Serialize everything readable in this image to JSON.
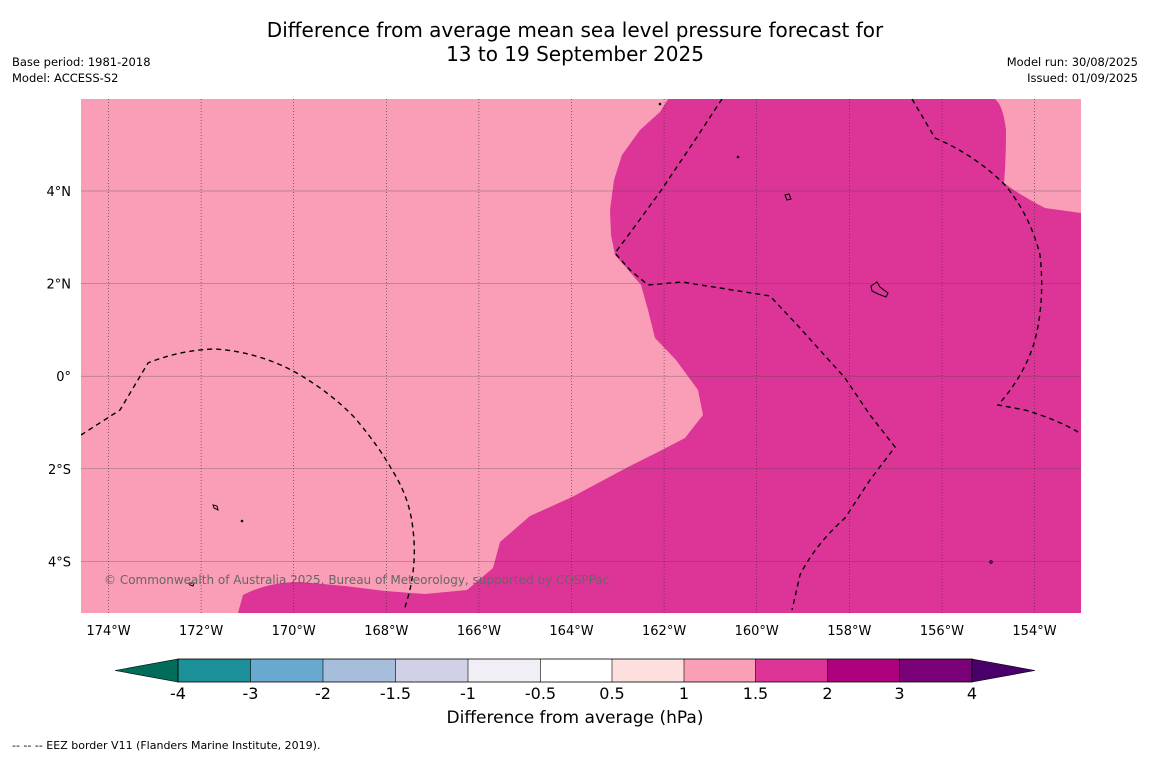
{
  "header": {
    "title_line1": "Difference from average mean sea level pressure forecast for",
    "title_line2": "13 to 19 September 2025",
    "base_period": "Base period: 1981-2018",
    "model": "Model: ACCESS-S2",
    "model_run": "Model run: 30/08/2025",
    "issued": "Issued: 01/09/2025"
  },
  "map": {
    "lon_labels": [
      "174°W",
      "172°W",
      "170°W",
      "168°W",
      "166°W",
      "164°W",
      "162°W",
      "160°W",
      "158°W",
      "156°W",
      "154°W"
    ],
    "lat_labels": [
      "4°N",
      "2°N",
      "0°",
      "2°S",
      "4°S"
    ],
    "copyright": "© Commonwealth of Australia 2025, Bureau of Meteorology, supported by COSPPac",
    "colors": {
      "anomaly_1_to_1_5": "#f99eb6",
      "anomaly_1_5_to_2": "#dd3497"
    }
  },
  "colorbar": {
    "labels": [
      "-4",
      "-3",
      "-2",
      "-1.5",
      "-1",
      "-0.5",
      "0.5",
      "1",
      "1.5",
      "2",
      "3",
      "4"
    ],
    "colors": [
      "#016c59",
      "#1c9099",
      "#67a9cf",
      "#a6bddb",
      "#d0d1e6",
      "#f1eef6",
      "#ffffff",
      "#fde0dd",
      "#fa9fb5",
      "#dd3497",
      "#ae017e",
      "#7a0177",
      "#49006a"
    ],
    "title": "Difference from average (hPa)"
  },
  "footnote": "--  --  -- EEZ border V11 (Flanders Marine Institute, 2019)."
}
